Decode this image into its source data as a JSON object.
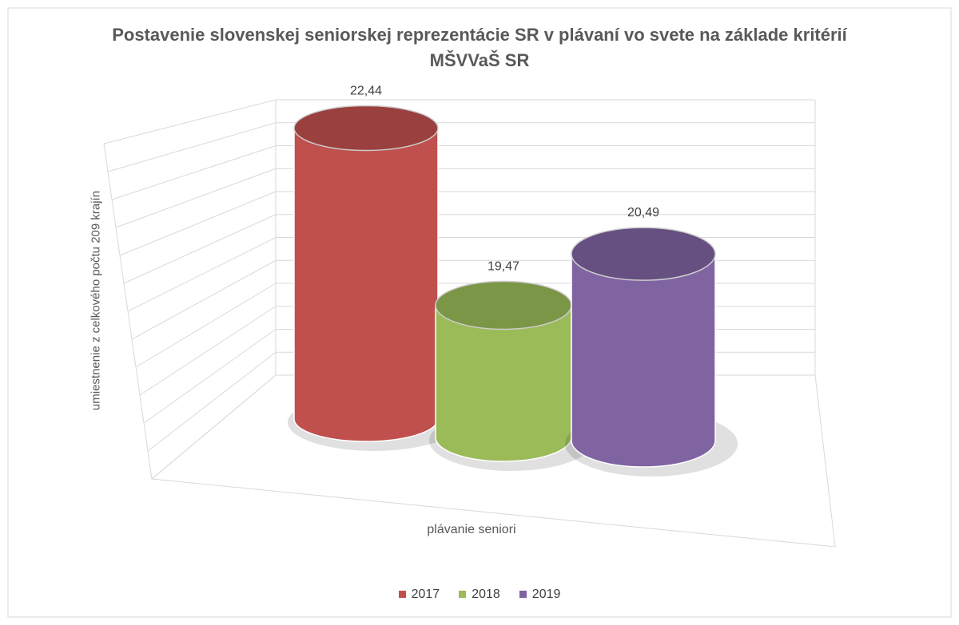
{
  "chart_data": {
    "type": "cylinder3d",
    "title": "Postavenie slovenskej seniorskej reprezentácie SR v plávaní vo svete na základe kritérií MŠVVaŠ SR",
    "y_axis_label": "umiestnenie z celkového počtu 209 krajín",
    "categories": [
      "plávanie seniori"
    ],
    "series": [
      {
        "name": "2017",
        "color": "#c0504d",
        "values": [
          22.44
        ],
        "value_labels": [
          "22,44"
        ]
      },
      {
        "name": "2018",
        "color": "#9bbb59",
        "values": [
          19.47
        ],
        "value_labels": [
          "19,47"
        ]
      },
      {
        "name": "2019",
        "color": "#8064a2",
        "values": [
          20.49
        ],
        "value_labels": [
          "20,49"
        ]
      }
    ],
    "ylim": [
      17,
      23
    ],
    "yticks": [
      17,
      17.5,
      18,
      18.5,
      19,
      19.5,
      20,
      20.5,
      21,
      21.5,
      22,
      22.5,
      23
    ],
    "grid": true,
    "legend": "bottom"
  }
}
